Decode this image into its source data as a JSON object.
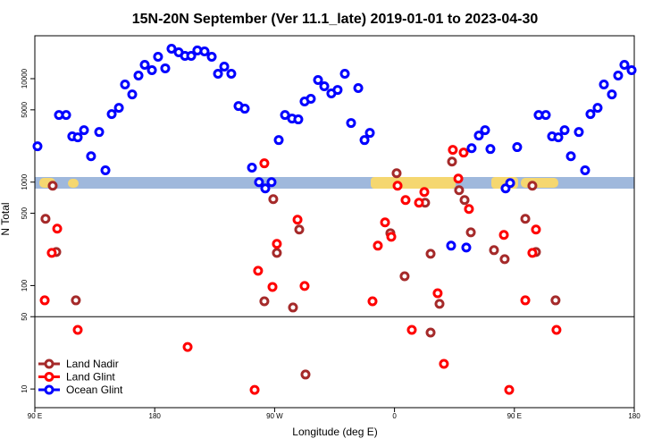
{
  "chart_data": {
    "type": "scatter",
    "title": "15N-20N September (Ver 11.1_late)   2019-01-01 to 2023-04-30",
    "xlabel": "Longitude (deg E)",
    "ylabel": "N Total",
    "xlim": [
      90,
      540
    ],
    "xticks": [
      {
        "value": 90,
        "label": "90 E"
      },
      180,
      {
        "value": 270,
        "label": "90 W"
      },
      {
        "value": 360,
        "label": "0"
      },
      {
        "value": 450,
        "label": "90 E"
      },
      {
        "value": 540,
        "label": "180"
      }
    ],
    "ylim": [
      6.6,
      26000
    ],
    "log_y": true,
    "break_at": 50,
    "yticks": [
      10,
      50,
      100,
      500,
      1000,
      5000,
      10000
    ],
    "legend": "lower left",
    "series": [
      {
        "name": "Land Nadir",
        "color": "#a52a2a",
        "x": [
          103.4,
          98.0,
          106.1,
          120.8,
          262.3,
          269.0,
          271.7,
          283.8,
          288.5,
          361.6,
          356.9,
          367.6,
          383.0,
          387.1,
          393.8,
          403.2,
          408.5,
          412.6,
          417.3,
          434.7,
          442.7,
          458.2,
          463.5,
          466.2,
          480.9,
          293.2,
          387.1
        ],
        "values": [
          923,
          442,
          211,
          72,
          70.5,
          685,
          207,
          61.4,
          348,
          1220,
          321,
          123,
          632,
          203,
          66.5,
          1580,
          836,
          671,
          327,
          220,
          180,
          442,
          923,
          211,
          72,
          13.8,
          35.1
        ]
      },
      {
        "name": "Land Glint",
        "color": "#ff0000",
        "x": [
          97.4,
          102.7,
          106.8,
          262.3,
          257.6,
          268.4,
          271.7,
          292.5,
          287.2,
          343.5,
          347.5,
          352.9,
          357.6,
          362.3,
          368.3,
          378.4,
          382.4,
          392.4,
          403.8,
          407.9,
          411.9,
          415.9,
          442.1,
          458.2,
          466.2,
          463.5,
          122.2,
          204.7,
          255.0,
          373.0,
          397.1,
          446.1,
          481.6
        ],
        "values": [
          72,
          207,
          355,
          1520,
          139,
          97,
          253,
          99,
          433,
          70.5,
          243,
          408,
          296,
          923,
          671,
          632,
          803,
          84.3,
          2050,
          1083,
          1930,
          550,
          309,
          72,
          348,
          207,
          37.3,
          25.5,
          9.8,
          37.3,
          17.5,
          9.8,
          37.3
        ]
      },
      {
        "name": "Ocean Glint",
        "color": "#0000ff",
        "x": [
          92.0,
          108.1,
          113.5,
          118.1,
          122.2,
          126.9,
          132.2,
          138.3,
          143.0,
          147.7,
          153.1,
          157.7,
          163.1,
          167.8,
          172.5,
          177.9,
          182.5,
          187.9,
          192.6,
          198.0,
          202.7,
          207.4,
          212.0,
          217.4,
          222.8,
          227.5,
          232.2,
          237.5,
          242.9,
          247.6,
          253.0,
          258.3,
          263.0,
          267.7,
          273.1,
          277.8,
          283.1,
          287.8,
          292.5,
          297.2,
          302.6,
          307.3,
          312.6,
          317.3,
          322.7,
          327.4,
          332.8,
          337.5,
          341.5,
          402.5,
          413.9,
          417.9,
          423.3,
          428.0,
          432.0,
          443.4,
          446.8,
          452.1,
          468.2,
          473.6,
          478.3,
          483.0,
          487.7,
          492.4,
          498.4,
          503.1,
          507.1,
          512.5,
          517.2,
          523.2,
          527.9,
          532.6,
          538.0
        ],
        "values": [
          2220,
          4460,
          4460,
          2770,
          2710,
          3180,
          1780,
          3050,
          1300,
          4550,
          5230,
          8790,
          7050,
          10720,
          13620,
          12080,
          16300,
          12590,
          19500,
          18000,
          16630,
          16630,
          18750,
          18370,
          16300,
          11160,
          13080,
          11160,
          5440,
          5130,
          1380,
          1000,
          870,
          1000,
          2550,
          4460,
          4120,
          4040,
          6020,
          6390,
          9700,
          8440,
          7200,
          7790,
          11160,
          3730,
          8110,
          2550,
          2990,
          243,
          233,
          2130,
          2820,
          3180,
          2090,
          870,
          980,
          2180,
          4460,
          4460,
          2770,
          2710,
          3180,
          1780,
          3050,
          1300,
          4550,
          5230,
          8790,
          7050,
          10720,
          13620,
          12080
        ]
      }
    ]
  }
}
